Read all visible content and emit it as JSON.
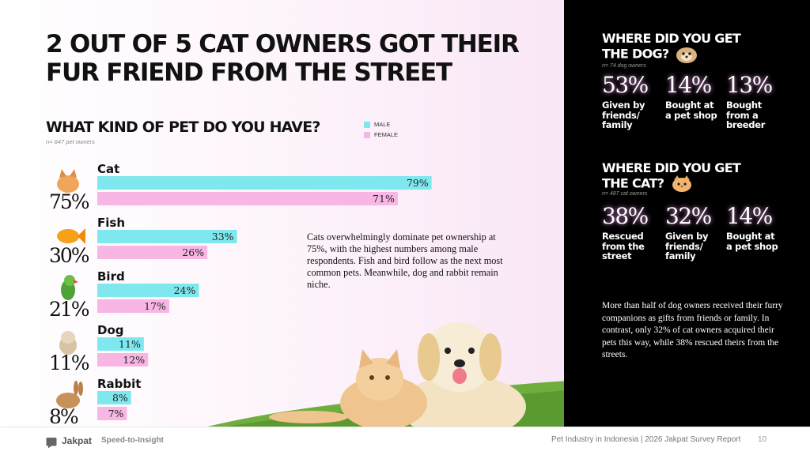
{
  "headline": "2 OUT OF 5 CAT OWNERS GOT THEIR FUR FRIEND FROM THE STREET",
  "subhead": "WHAT KIND OF PET DO YOU HAVE?",
  "sample_note": "n= 647 pet owners",
  "description": "Cats overwhelmingly dominate pet ownership at 75%, with the highest numbers among male respondents. Fish and bird follow as the next most common pets. Meanwhile, dog and rabbit remain niche.",
  "colors": {
    "male": "#7ee8ee",
    "female": "#f7b6e4",
    "right_bg": "#000000",
    "pct_glow": "#ffaaff"
  },
  "chart_data": {
    "type": "bar",
    "orientation": "horizontal",
    "categories": [
      "Cat",
      "Fish",
      "Bird",
      "Dog",
      "Rabbit"
    ],
    "totals": [
      "75%",
      "30%",
      "21%",
      "11%",
      "8%"
    ],
    "series": [
      {
        "name": "MALE",
        "values": [
          79,
          33,
          24,
          11,
          8
        ],
        "labels": [
          "79%",
          "33%",
          "24%",
          "11%",
          "8%"
        ]
      },
      {
        "name": "FEMALE",
        "values": [
          71,
          26,
          17,
          12,
          7
        ],
        "labels": [
          "71%",
          "26%",
          "17%",
          "12%",
          "7%"
        ]
      }
    ],
    "xlim": [
      0,
      100
    ],
    "legend": "top-right",
    "grid": false
  },
  "dog_section": {
    "title_line1": "WHERE DID YOU GET",
    "title_line2": "THE DOG?",
    "note": "n= 74 dog owners",
    "stats": [
      {
        "pct": "53%",
        "label": "Given by friends/ family"
      },
      {
        "pct": "14%",
        "label": "Bought at a pet shop"
      },
      {
        "pct": "13%",
        "label": "Bought from a breeder"
      }
    ]
  },
  "cat_section": {
    "title_line1": "WHERE DID YOU GET",
    "title_line2": "THE CAT?",
    "note": "n= 487 cat owners",
    "stats": [
      {
        "pct": "38%",
        "label": "Rescued from the street"
      },
      {
        "pct": "32%",
        "label": "Given by friends/ family"
      },
      {
        "pct": "14%",
        "label": "Bought at a pet shop"
      }
    ]
  },
  "right_description": "More than half of dog owners received their furry companions as gifts from friends or family. In contrast, only 32% of cat owners acquired their pets this way, while 38% rescued theirs from the streets.",
  "footer": {
    "logo": "Jakpat",
    "slogan": "Speed-to-Insight",
    "report": "Pet Industry in Indonesia | 2026 Jakpat Survey Report",
    "page": "10"
  }
}
